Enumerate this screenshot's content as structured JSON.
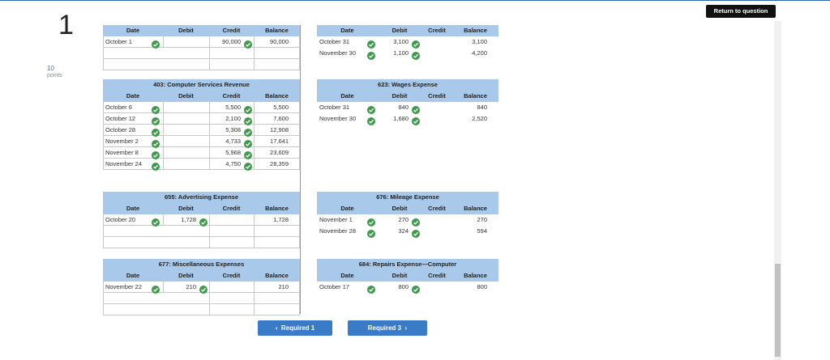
{
  "question": {
    "number": "1",
    "points": "10",
    "points_label": "points"
  },
  "return_button": "Return to question",
  "columns": [
    "Date",
    "Debit",
    "Credit",
    "Balance"
  ],
  "ledgers": [
    {
      "title": null,
      "rows": [
        [
          "October 1",
          null,
          "90,000",
          "90,000"
        ]
      ]
    },
    {
      "title": null,
      "rows": [
        [
          "October 31",
          "3,100",
          null,
          "3,100"
        ],
        [
          "November 30",
          "1,100",
          null,
          "4,200"
        ]
      ]
    },
    {
      "title": "403: Computer Services Revenue",
      "rows": [
        [
          "October 6",
          null,
          "5,500",
          "5,500"
        ],
        [
          "October 12",
          null,
          "2,100",
          "7,600"
        ],
        [
          "October 28",
          null,
          "5,308",
          "12,908"
        ],
        [
          "November 2",
          null,
          "4,733",
          "17,641"
        ],
        [
          "November 8",
          null,
          "5,968",
          "23,609"
        ],
        [
          "November 24",
          null,
          "4,750",
          "28,359"
        ]
      ]
    },
    {
      "title": "623: Wages Expense",
      "rows": [
        [
          "October 31",
          "840",
          null,
          "840"
        ],
        [
          "November 30",
          "1,680",
          null,
          "2,520"
        ]
      ]
    },
    {
      "title": "655: Advertising Expense",
      "rows": [
        [
          "October 20",
          "1,728",
          null,
          "1,728"
        ]
      ]
    },
    {
      "title": "676: Mileage Expense",
      "rows": [
        [
          "November 1",
          "270",
          null,
          "270"
        ],
        [
          "November 28",
          "324",
          null,
          "594"
        ]
      ]
    },
    {
      "title": "677: Miscellaneous Expenses",
      "rows": [
        [
          "November 22",
          "210",
          null,
          "210"
        ]
      ]
    },
    {
      "title": "684: Repairs Expense—Computer",
      "rows": [
        [
          "October 17",
          "800",
          null,
          "800"
        ]
      ]
    }
  ],
  "nav": {
    "prev": "Required 1",
    "next": "Required 3"
  }
}
